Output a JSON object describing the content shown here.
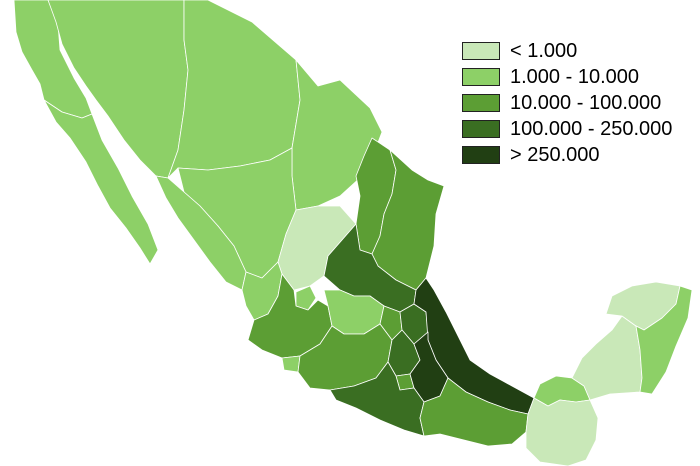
{
  "colors": {
    "c1": "#c9e8b8",
    "c2": "#8dd067",
    "c3": "#5c9e34",
    "c4": "#3a6e22",
    "c5": "#213f13"
  },
  "legend": [
    {
      "label": "< 1.000",
      "color": "#c9e8b8"
    },
    {
      "label": "1.000 - 10.000",
      "color": "#8dd067"
    },
    {
      "label": "10.000 - 100.000",
      "color": "#5c9e34"
    },
    {
      "label": "100.000 - 250.000",
      "color": "#3a6e22"
    },
    {
      "label": "> 250.000",
      "color": "#213f13"
    }
  ]
}
